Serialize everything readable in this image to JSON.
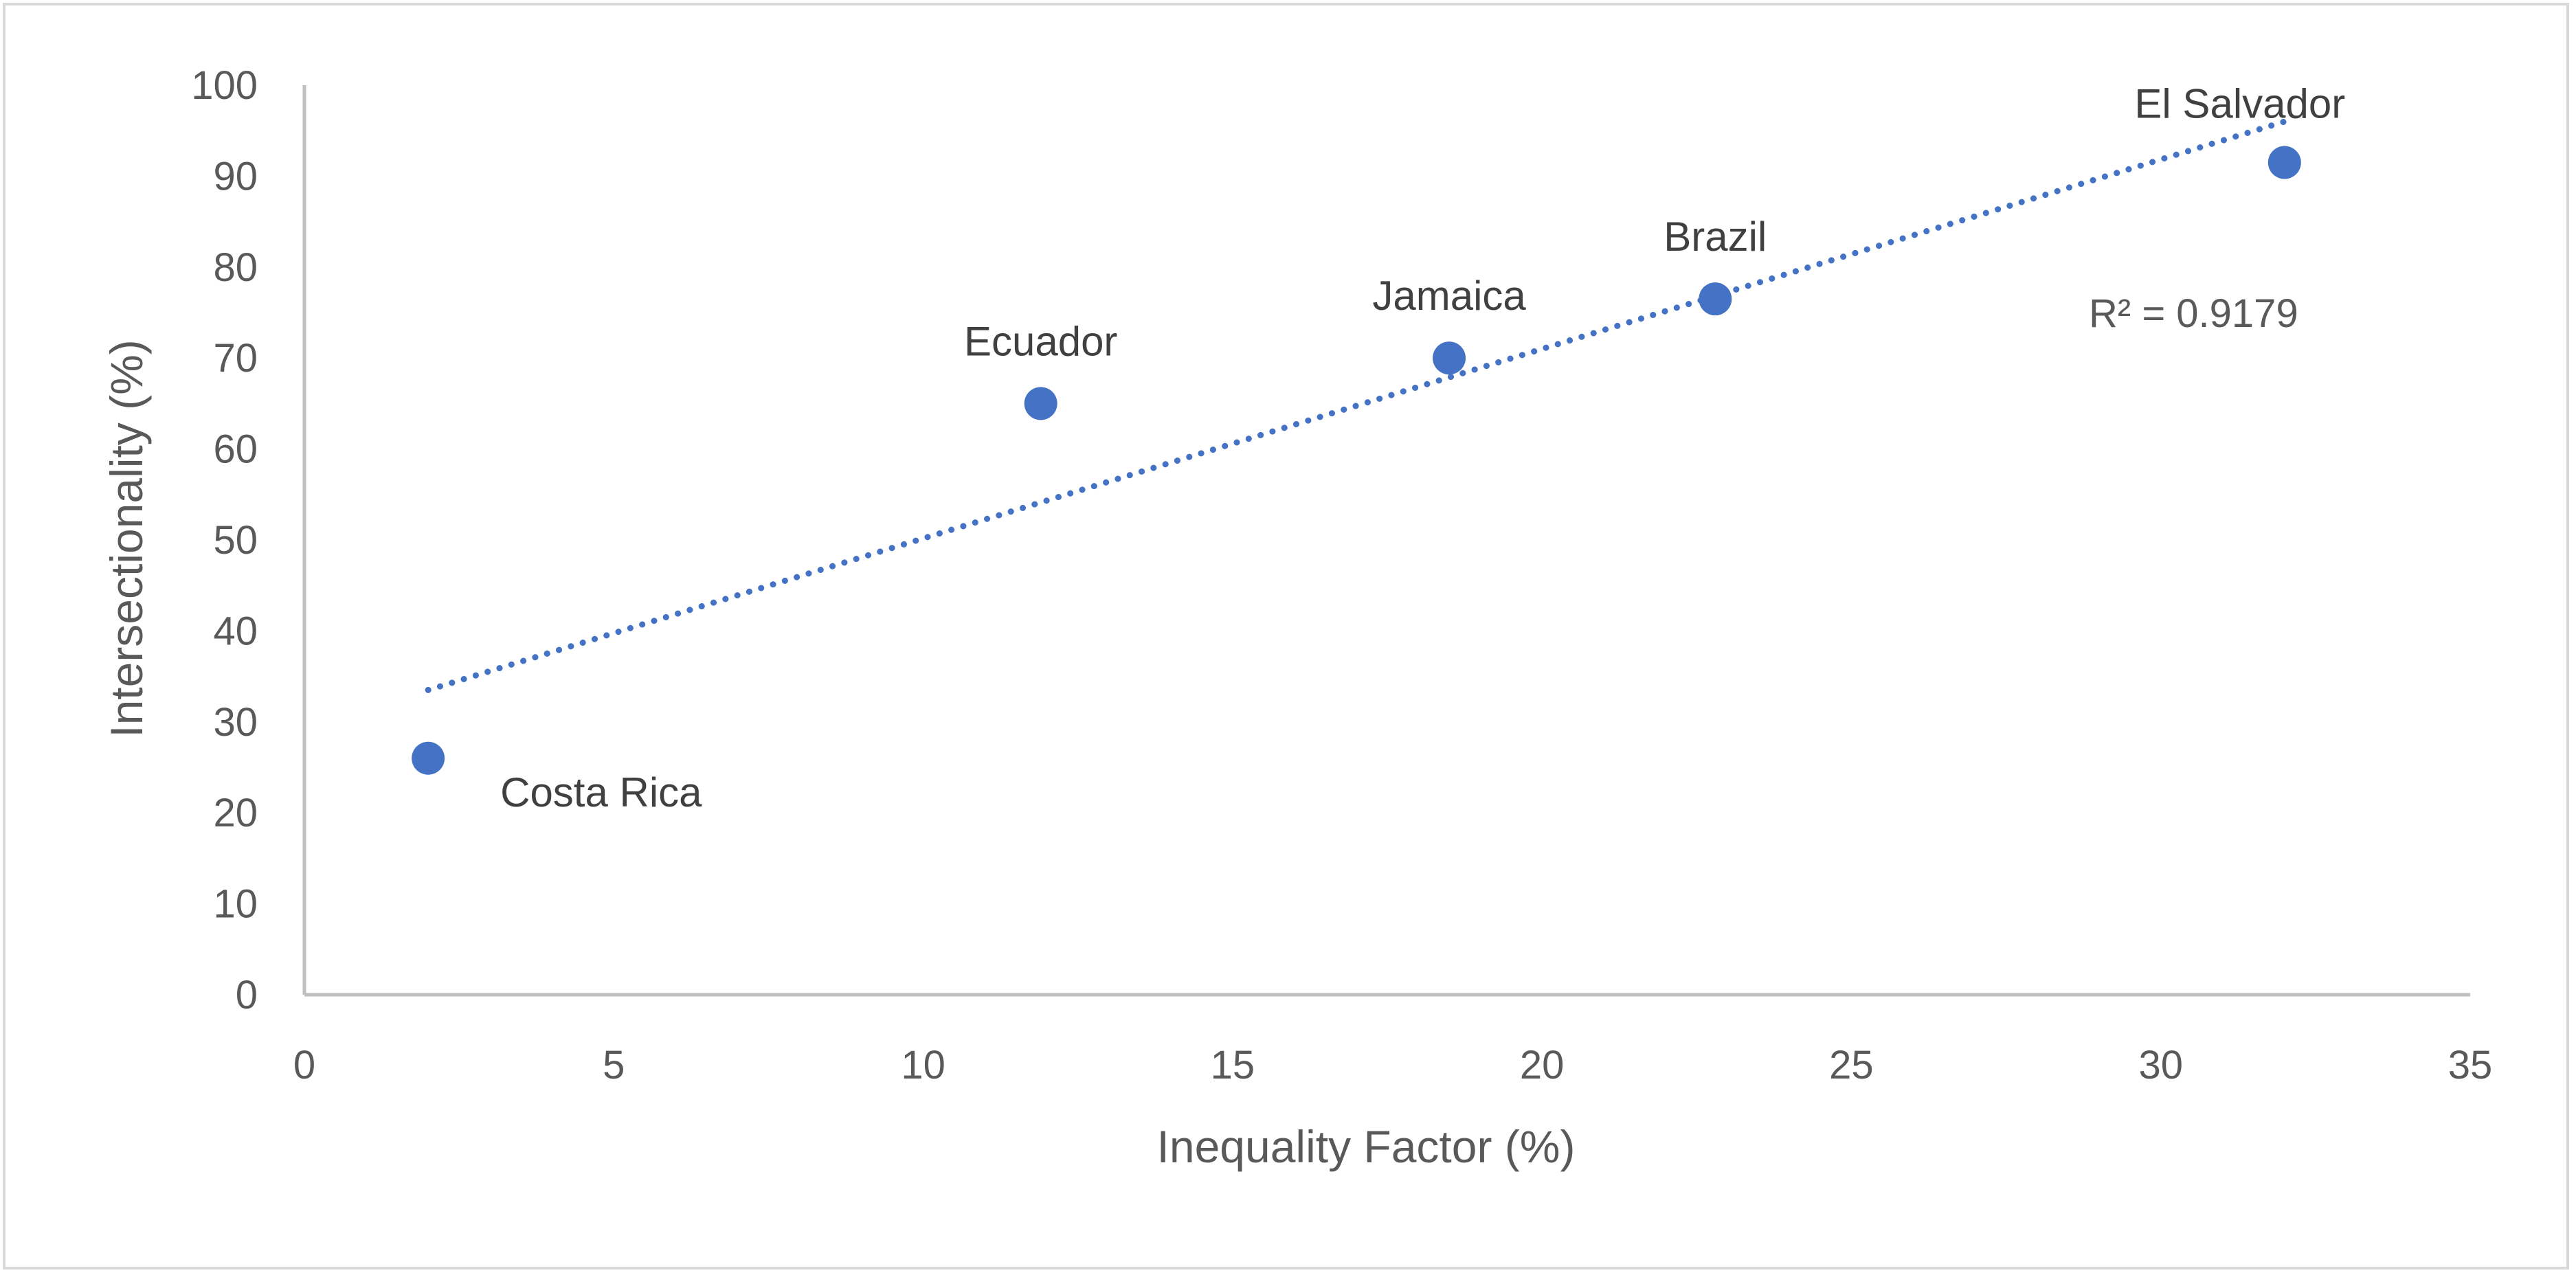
{
  "chart_data": {
    "type": "scatter",
    "title": "",
    "xlabel": "Inequality Factor (%)",
    "ylabel": "Intersectionality (%)",
    "xlim": [
      0,
      35
    ],
    "ylim": [
      0,
      100
    ],
    "x_ticks": [
      0,
      5,
      10,
      15,
      20,
      25,
      30,
      35
    ],
    "y_ticks": [
      0,
      10,
      20,
      30,
      40,
      50,
      60,
      70,
      80,
      90,
      100
    ],
    "grid": false,
    "legend": "none",
    "marker_color": "#4472c4",
    "trendline_color": "#4472c4",
    "points": [
      {
        "label": "Costa Rica",
        "x": 2,
        "y": 26
      },
      {
        "label": "Ecuador",
        "x": 11.9,
        "y": 65
      },
      {
        "label": "Jamaica",
        "x": 18.5,
        "y": 70
      },
      {
        "label": "Brazil",
        "x": 22.8,
        "y": 76.5
      },
      {
        "label": "El Salvador",
        "x": 32,
        "y": 91.5
      }
    ],
    "trendline": {
      "type": "linear",
      "style": "dotted",
      "x_start": 2,
      "y_start": 33.5,
      "x_end": 32,
      "y_end": 96,
      "r_squared_text": "R² = 0.9179"
    }
  }
}
